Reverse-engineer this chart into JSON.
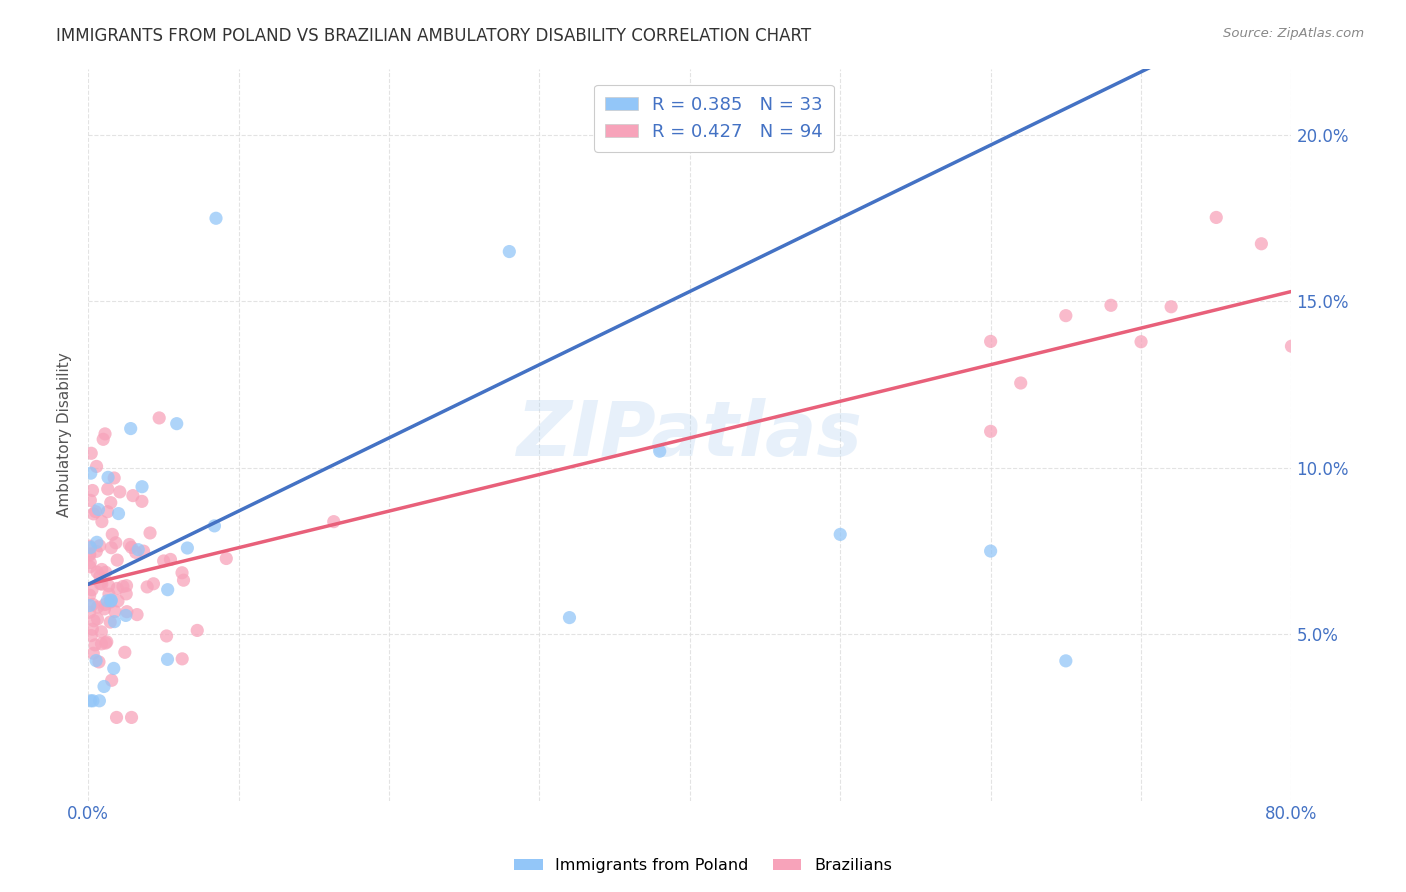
{
  "title": "IMMIGRANTS FROM POLAND VS BRAZILIAN AMBULATORY DISABILITY CORRELATION CHART",
  "source": "Source: ZipAtlas.com",
  "ylabel": "Ambulatory Disability",
  "xlim": [
    0,
    0.8
  ],
  "ylim": [
    0,
    0.22
  ],
  "x_tick_positions": [
    0.0,
    0.1,
    0.2,
    0.3,
    0.4,
    0.5,
    0.6,
    0.7,
    0.8
  ],
  "x_tick_labels": [
    "0.0%",
    "",
    "",
    "",
    "",
    "",
    "",
    "",
    "80.0%"
  ],
  "y_ticks_right": [
    0.05,
    0.1,
    0.15,
    0.2
  ],
  "y_tick_labels_right": [
    "5.0%",
    "10.0%",
    "15.0%",
    "20.0%"
  ],
  "poland_color": "#93c6f8",
  "brazil_color": "#f7a3ba",
  "poland_line_color": "#4472c4",
  "brazil_line_color": "#e8607a",
  "poland_dashed_color": "#93c6f8",
  "poland_R": 0.385,
  "poland_N": 33,
  "brazil_R": 0.427,
  "brazil_N": 94,
  "watermark": "ZIPatlas",
  "background_color": "#ffffff",
  "grid_color": "#e0e0e0",
  "title_fontsize": 12,
  "axis_label_fontsize": 11,
  "tick_fontsize": 12,
  "legend_fontsize": 13,
  "poland_intercept": 0.065,
  "poland_slope": 0.22,
  "brazil_intercept": 0.065,
  "brazil_slope": 0.11
}
